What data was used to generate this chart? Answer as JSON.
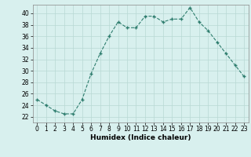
{
  "x": [
    0,
    1,
    2,
    3,
    4,
    5,
    6,
    7,
    8,
    9,
    10,
    11,
    12,
    13,
    14,
    15,
    16,
    17,
    18,
    19,
    20,
    21,
    22,
    23
  ],
  "y": [
    25,
    24,
    23,
    22.5,
    22.5,
    25,
    29.5,
    33,
    36,
    38.5,
    37.5,
    37.5,
    39.5,
    39.5,
    38.5,
    39,
    39,
    41,
    38.5,
    37,
    35,
    33,
    31,
    29
  ],
  "line_color": "#2e7d6e",
  "marker": "+",
  "markersize": 3,
  "bg_color": "#d8f0ee",
  "grid_color": "#b8d8d4",
  "xlabel": "Humidex (Indice chaleur)",
  "ylabel": "",
  "xlim": [
    -0.5,
    23.5
  ],
  "ylim": [
    21,
    41.5
  ],
  "yticks": [
    22,
    24,
    26,
    28,
    30,
    32,
    34,
    36,
    38,
    40
  ],
  "xticks": [
    0,
    1,
    2,
    3,
    4,
    5,
    6,
    7,
    8,
    9,
    10,
    11,
    12,
    13,
    14,
    15,
    16,
    17,
    18,
    19,
    20,
    21,
    22,
    23
  ],
  "label_fontsize": 6.5,
  "tick_fontsize": 5.5,
  "linewidth": 0.8
}
